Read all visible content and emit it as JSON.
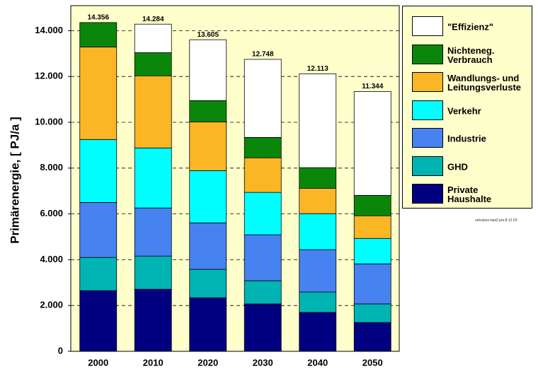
{
  "chart_data": {
    "type": "stacked-bar",
    "y_label": "Primärenergie, [ PJ/a ]",
    "categories": [
      "2000",
      "2010",
      "2020",
      "2030",
      "2040",
      "2050"
    ],
    "series": [
      {
        "name": "Private\nHaushalte",
        "color": "#000080",
        "values": [
          2650,
          2710,
          2340,
          2070,
          1700,
          1260
        ]
      },
      {
        "name": "GHD",
        "color": "#00b4b4",
        "values": [
          1450,
          1450,
          1240,
          1010,
          890,
          810
        ]
      },
      {
        "name": "Industrie",
        "color": "#4683f0",
        "values": [
          2400,
          2100,
          2030,
          2010,
          1850,
          1750
        ]
      },
      {
        "name": "Verkehr",
        "color": "#00ffff",
        "values": [
          2750,
          2620,
          2280,
          1850,
          1570,
          1110
        ]
      },
      {
        "name": "Wandlungs- und\nLeitungsverluste",
        "color": "#fbb626",
        "values": [
          4040,
          3150,
          2130,
          1510,
          1110,
          990
        ]
      },
      {
        "name": "Nichteneg.\nVerbrauch",
        "color": "#0a870a",
        "values": [
          1066,
          1010,
          930,
          890,
          900,
          890
        ]
      },
      {
        "name": "\"Effizienz\"",
        "color": "#ffffff",
        "values": [
          0,
          1244,
          2655,
          3408,
          4093,
          4534
        ]
      }
    ],
    "totals": {
      "values": [
        14356,
        14284,
        13605,
        12748,
        12113,
        11344
      ],
      "value_labels": [
        "14.356",
        "14.284",
        "13.605",
        "12.748",
        "12.113",
        "11.344"
      ]
    },
    "ylim": [
      0,
      15000
    ],
    "yticks": [
      0,
      {
        "value": 2000,
        "label": "2.000"
      },
      {
        "value": 4000,
        "label": "4.000"
      },
      {
        "value": 6000,
        "label": "6.000"
      },
      {
        "value": 8000,
        "label": "8.000"
      },
      {
        "value": 10000,
        "label": "10.000"
      },
      {
        "value": 12000,
        "label": "12.000"
      },
      {
        "value": 14000,
        "label": "14.000"
      }
    ],
    "grid": true,
    "plot_background": "#ffffcc",
    "footnote": "oeko/pev-bas2.pre;8.12.03"
  }
}
